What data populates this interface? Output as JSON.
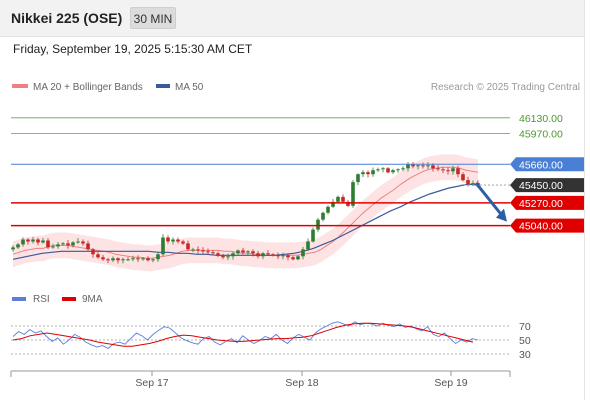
{
  "header": {
    "title": "Nikkei 225 (OSE)",
    "timeframe": "30 MIN",
    "datetime": "Friday, September 19, 2025 5:15:30 AM CET"
  },
  "legend": {
    "ma20": "MA 20 + Bollinger Bands",
    "ma50": "MA 50",
    "credit": "Research © 2025 Trading Central"
  },
  "colors": {
    "up": "#2e7d32",
    "down": "#c62828",
    "ma20": "#f08080",
    "ma50": "#3a5a9a",
    "band_fill": "#fde0e0",
    "resistance_green": "#4caf50",
    "pivot_blue": "#4a7fd6",
    "support_red": "#e00000",
    "arrow": "#2a5fa8",
    "rsi": "#5b7fd9",
    "rsi_ma": "#e00000"
  },
  "chart_data": [
    {
      "type": "candlestick",
      "title": "",
      "x_ticks": [
        "Sep 17",
        "Sep 18",
        "Sep 19"
      ],
      "price_levels": [
        {
          "value": 46130.0,
          "label": "46130.00",
          "kind": "resistance"
        },
        {
          "value": 45970.0,
          "label": "45970.00",
          "kind": "resistance"
        },
        {
          "value": 45660.0,
          "label": "45660.00",
          "kind": "pivot"
        },
        {
          "value": 45450.0,
          "label": "45450.00",
          "kind": "last"
        },
        {
          "value": 45270.0,
          "label": "45270.00",
          "kind": "support"
        },
        {
          "value": 45040.0,
          "label": "45040.00",
          "kind": "support"
        }
      ],
      "ylim": [
        44470,
        46290
      ],
      "close_series": [
        44820,
        44850,
        44900,
        44880,
        44900,
        44870,
        44890,
        44820,
        44830,
        44850,
        44860,
        44840,
        44870,
        44880,
        44860,
        44800,
        44750,
        44720,
        44700,
        44690,
        44710,
        44690,
        44700,
        44700,
        44710,
        44700,
        44710,
        44690,
        44700,
        44750,
        44920,
        44880,
        44900,
        44880,
        44860,
        44800,
        44800,
        44790,
        44780,
        44770,
        44760,
        44740,
        44720,
        44730,
        44760,
        44790,
        44770,
        44780,
        44760,
        44730,
        44760,
        44750,
        44740,
        44730,
        44740,
        44720,
        44700,
        44730,
        44800,
        44880,
        45000,
        45100,
        45170,
        45230,
        45280,
        45330,
        45280,
        45240,
        45480,
        45560,
        45580,
        45560,
        45600,
        45610,
        45620,
        45580,
        45600,
        45610,
        45620,
        45660,
        45640,
        45650,
        45640,
        45650,
        45620,
        45610,
        45600,
        45590,
        45620,
        45560,
        45500,
        45460,
        45470,
        45450
      ],
      "ma20_series": [
        44750,
        44770,
        44790,
        44800,
        44810,
        44810,
        44830,
        44840,
        44840,
        44840,
        44830,
        44820,
        44810,
        44800,
        44790,
        44780,
        44770,
        44750,
        44740,
        44730,
        44720,
        44720,
        44710,
        44710,
        44720,
        44730,
        44740,
        44760,
        44780,
        44790,
        44790,
        44790,
        44790,
        44790,
        44790,
        44780,
        44780,
        44770,
        44760,
        44760,
        44750,
        44750,
        44740,
        44740,
        44740,
        44740,
        44740,
        44740,
        44750,
        44760,
        44770,
        44800,
        44840,
        44880,
        44930,
        44990,
        45050,
        45110,
        45170,
        45220,
        45270,
        45320,
        45360,
        45400,
        45450,
        45490,
        45530,
        45560,
        45590,
        45610,
        45620,
        45630,
        45630,
        45630,
        45620,
        45600,
        45590,
        45580
      ],
      "ma50_series": [
        44700,
        44720,
        44740,
        44760,
        44770,
        44780,
        44780,
        44780,
        44780,
        44780,
        44780,
        44780,
        44780,
        44780,
        44780,
        44770,
        44770,
        44760,
        44760,
        44750,
        44750,
        44740,
        44740,
        44740,
        44740,
        44740,
        44740,
        44740,
        44750,
        44760,
        44780,
        44810,
        44850,
        44890,
        44940,
        44990,
        45040,
        45090,
        45140,
        45190,
        45230,
        45280,
        45320,
        45360,
        45390,
        45420,
        45440,
        45460,
        45450
      ],
      "rsi": {
        "levels": [
          70,
          50,
          30
        ],
        "legend": [
          "RSI",
          "9MA"
        ],
        "ylim": [
          10,
          90
        ],
        "rsi_series": [
          55,
          62,
          58,
          65,
          60,
          63,
          55,
          48,
          53,
          44,
          50,
          58,
          54,
          47,
          43,
          40,
          42,
          38,
          45,
          47,
          44,
          52,
          60,
          56,
          50,
          58,
          64,
          69,
          67,
          60,
          53,
          49,
          46,
          44,
          52,
          55,
          47,
          43,
          48,
          52,
          46,
          56,
          50,
          45,
          49,
          55,
          52,
          58,
          50,
          45,
          53,
          58,
          54,
          50,
          60,
          66,
          70,
          74,
          76,
          73,
          70,
          76,
          72,
          74,
          73,
          70,
          74,
          71,
          69,
          73,
          68,
          70,
          66,
          63,
          69,
          58,
          55,
          60,
          52,
          45,
          50,
          47,
          52,
          50
        ],
        "ma_series": [
          50,
          52,
          56,
          58,
          60,
          58,
          56,
          54,
          52,
          50,
          47,
          45,
          43,
          41,
          41,
          43,
          45,
          48,
          52,
          55,
          57,
          56,
          54,
          52,
          50,
          49,
          48,
          48,
          49,
          50,
          51,
          52,
          52,
          53,
          54,
          56,
          60,
          64,
          68,
          71,
          73,
          74,
          74,
          73,
          72,
          71,
          70,
          68,
          65,
          62,
          59,
          56,
          53,
          50,
          47
        ]
      }
    }
  ]
}
